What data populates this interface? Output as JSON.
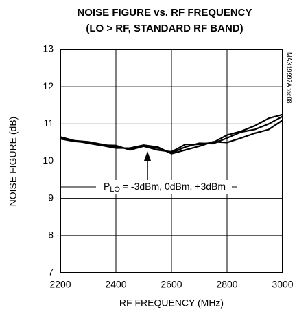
{
  "chart_data": {
    "type": "line",
    "title": [
      "NOISE FIGURE vs. RF FREQUENCY",
      "(LO > RF, STANDARD RF BAND)"
    ],
    "x_label": "RF FREQUENCY (MHz)",
    "y_label": "NOISE FIGURE (dB)",
    "side_note": "MAX19997A toc08",
    "annotation": [
      "P",
      "LO",
      " = -3dBm, 0dBm, +3dBm"
    ],
    "x": [
      2200,
      2250,
      2300,
      2350,
      2400,
      2450,
      2500,
      2550,
      2600,
      2650,
      2700,
      2750,
      2800,
      2850,
      2900,
      2950,
      3000
    ],
    "series": [
      {
        "color": "#000000",
        "values": [
          10.63,
          10.55,
          10.52,
          10.45,
          10.38,
          10.33,
          10.42,
          10.35,
          10.22,
          10.38,
          10.48,
          10.47,
          10.62,
          10.78,
          10.85,
          11.0,
          11.2
        ]
      },
      {
        "color": "#000000",
        "values": [
          10.6,
          10.53,
          10.5,
          10.43,
          10.42,
          10.3,
          10.4,
          10.3,
          10.25,
          10.45,
          10.45,
          10.5,
          10.7,
          10.8,
          10.95,
          11.15,
          11.25
        ]
      },
      {
        "color": "#000000",
        "values": [
          10.65,
          10.55,
          10.48,
          10.42,
          10.35,
          10.35,
          10.43,
          10.38,
          10.2,
          10.3,
          10.4,
          10.52,
          10.5,
          10.62,
          10.75,
          10.85,
          11.1
        ]
      }
    ],
    "xlim": [
      2200,
      3000
    ],
    "xticks": [
      2200,
      2400,
      2600,
      2800,
      3000
    ],
    "ylim": [
      7,
      13
    ],
    "yticks": [
      7,
      8,
      9,
      10,
      11,
      12,
      13
    ],
    "grid": true
  }
}
